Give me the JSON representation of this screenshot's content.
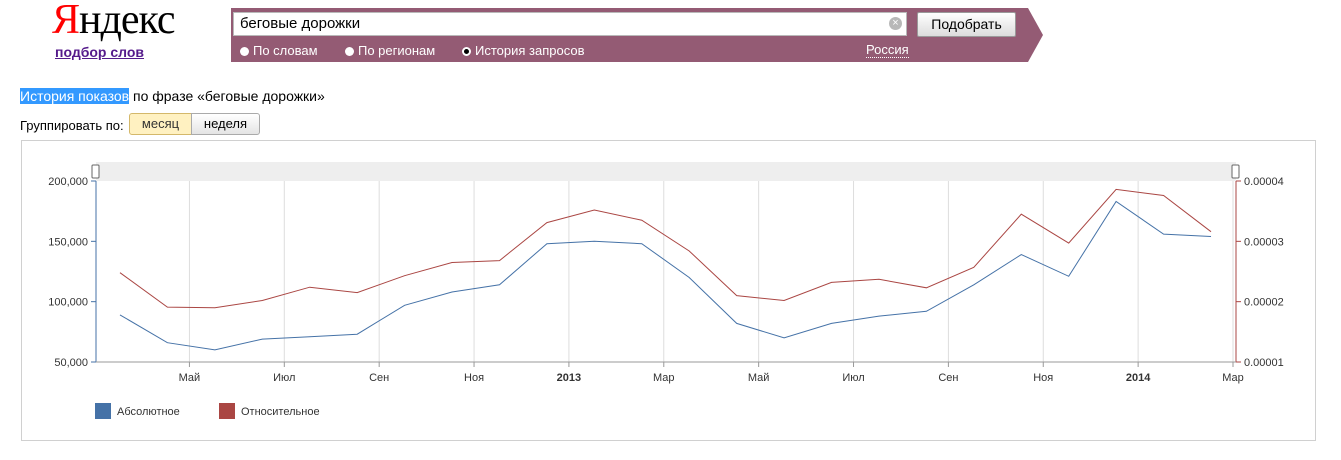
{
  "header": {
    "logo_first": "Я",
    "logo_rest": "ндекс",
    "logo_link": "подбор слов",
    "search_value": "беговые дорожки",
    "clear_symbol": "×",
    "find_button": "Подобрать",
    "radio_options": [
      {
        "label": "По словам",
        "checked": false
      },
      {
        "label": "По регионам",
        "checked": false
      },
      {
        "label": "История запросов",
        "checked": true
      }
    ],
    "region": "Россия",
    "bar_color": "#945b74"
  },
  "page": {
    "title_highlight": "История показов",
    "title_rest": " по фразе «беговые дорожки»",
    "group_label": "Группировать по:",
    "group_month": "месяц",
    "group_week": "неделя"
  },
  "chart_data": {
    "type": "line",
    "x": [
      "2012-04",
      "2012-05",
      "2012-06",
      "2012-07",
      "2012-08",
      "2012-09",
      "2012-10",
      "2012-11",
      "2012-12",
      "2013-01",
      "2013-02",
      "2013-03",
      "2013-04",
      "2013-05",
      "2013-06",
      "2013-07",
      "2013-08",
      "2013-09",
      "2013-10",
      "2013-11",
      "2013-12",
      "2014-01",
      "2014-02",
      "2014-03"
    ],
    "x_tick_labels": [
      {
        "index": 1,
        "label": "Май",
        "bold": false
      },
      {
        "index": 3,
        "label": "Июл",
        "bold": false
      },
      {
        "index": 5,
        "label": "Сен",
        "bold": false
      },
      {
        "index": 7,
        "label": "Ноя",
        "bold": false
      },
      {
        "index": 9,
        "label": "2013",
        "bold": true
      },
      {
        "index": 11,
        "label": "Мар",
        "bold": false
      },
      {
        "index": 13,
        "label": "Май",
        "bold": false
      },
      {
        "index": 15,
        "label": "Июл",
        "bold": false
      },
      {
        "index": 17,
        "label": "Сен",
        "bold": false
      },
      {
        "index": 19,
        "label": "Ноя",
        "bold": false
      },
      {
        "index": 21,
        "label": "2014",
        "bold": true
      },
      {
        "index": 23,
        "label": "Мар",
        "bold": false
      }
    ],
    "y_left": {
      "min": 50000,
      "max": 200000,
      "ticks": [
        "50,000",
        "100,000",
        "150,000",
        "200,000"
      ],
      "tick_values": [
        50000,
        100000,
        150000,
        200000
      ]
    },
    "y_right": {
      "min": 1e-05,
      "max": 4e-05,
      "ticks": [
        "0.00001",
        "0.00002",
        "0.00003",
        "0.00004"
      ],
      "tick_values": [
        1e-05,
        2e-05,
        3e-05,
        4e-05
      ]
    },
    "series": [
      {
        "name": "Абсолютное",
        "axis": "left",
        "color": "#4572a7",
        "values": [
          89000,
          66000,
          60000,
          69000,
          71000,
          73000,
          97000,
          108000,
          114000,
          148000,
          150000,
          148000,
          120000,
          82000,
          70000,
          82000,
          88000,
          92000,
          114000,
          139000,
          121000,
          183000,
          156000,
          154000
        ]
      },
      {
        "name": "Относительное",
        "axis": "right",
        "color": "#aa4643",
        "values": [
          2.48e-05,
          1.91e-05,
          1.9e-05,
          2.02e-05,
          2.24e-05,
          2.15e-05,
          2.43e-05,
          2.65e-05,
          2.68e-05,
          3.31e-05,
          3.52e-05,
          3.35e-05,
          2.84e-05,
          2.1e-05,
          2.02e-05,
          2.32e-05,
          2.37e-05,
          2.23e-05,
          2.57e-05,
          3.45e-05,
          2.97e-05,
          3.86e-05,
          3.76e-05,
          3.16e-05
        ]
      }
    ],
    "grid": true,
    "legend": "bottom-left"
  }
}
